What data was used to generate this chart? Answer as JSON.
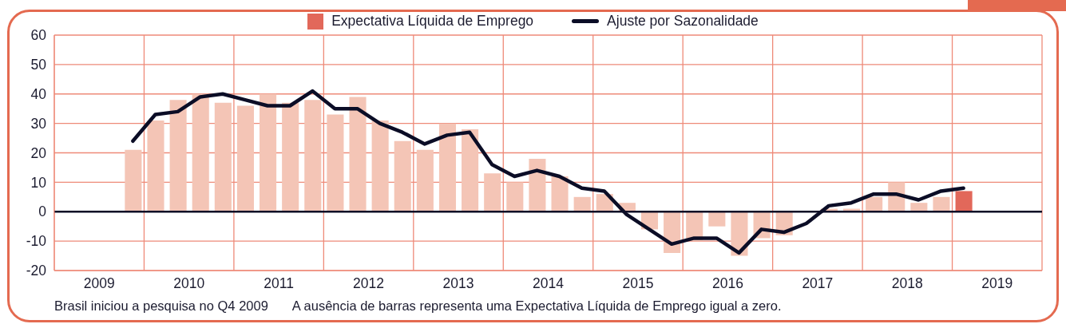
{
  "chart_data": {
    "type": "bar",
    "x": [
      2009.875,
      2010.125,
      2010.375,
      2010.625,
      2010.875,
      2011.125,
      2011.375,
      2011.625,
      2011.875,
      2012.125,
      2012.375,
      2012.625,
      2012.875,
      2013.125,
      2013.375,
      2013.625,
      2013.875,
      2014.125,
      2014.375,
      2014.625,
      2014.875,
      2015.125,
      2015.375,
      2015.625,
      2015.875,
      2016.125,
      2016.375,
      2016.625,
      2016.875,
      2017.125,
      2017.375,
      2017.625,
      2017.875,
      2018.125,
      2018.375,
      2018.625,
      2018.875,
      2019.125
    ],
    "series": [
      {
        "name": "Expectativa Líquida de Emprego",
        "color": "#e2685a",
        "colors": [
          "#f4c5b6",
          "#f4c5b6",
          "#f4c5b6",
          "#f4c5b6",
          "#f4c5b6",
          "#f4c5b6",
          "#f4c5b6",
          "#f4c5b6",
          "#f4c5b6",
          "#f4c5b6",
          "#f4c5b6",
          "#f4c5b6",
          "#f4c5b6",
          "#f4c5b6",
          "#f4c5b6",
          "#f4c5b6",
          "#f4c5b6",
          "#f4c5b6",
          "#f4c5b6",
          "#f4c5b6",
          "#f4c5b6",
          "#f4c5b6",
          "#f4c5b6",
          "#f4c5b6",
          "#f4c5b6",
          "#f4c5b6",
          "#f4c5b6",
          "#f4c5b6",
          "#f4c5b6",
          "#f4c5b6",
          "#f4c5b6",
          "#f4c5b6",
          "#f4c5b6",
          "#f4c5b6",
          "#f4c5b6",
          "#f4c5b6",
          "#f4c5b6",
          "#e2685a"
        ],
        "values": [
          21,
          31,
          38,
          40,
          37,
          36,
          40,
          37,
          38,
          33,
          39,
          31,
          24,
          21,
          30,
          28,
          13,
          10,
          18,
          12,
          5,
          6,
          3,
          -6,
          -14,
          -10,
          -5,
          -15,
          -9,
          -8,
          0,
          1,
          1,
          5,
          10,
          3,
          5,
          7
        ]
      },
      {
        "name": "Ajuste por Sazonalidade",
        "type": "line",
        "color": "#0b0d26",
        "values": [
          24,
          33,
          34,
          39,
          40,
          38,
          36,
          36,
          41,
          35,
          35,
          30,
          27,
          23,
          26,
          27,
          16,
          12,
          14,
          12,
          8,
          7,
          -1,
          -6,
          -11,
          -9,
          -9,
          -14,
          -6,
          -7,
          -4,
          2,
          3,
          6,
          6,
          4,
          7,
          8
        ]
      }
    ],
    "xlim": [
      2009,
      2020
    ],
    "xticks": [
      {
        "value": 2009,
        "label": null
      },
      {
        "value": 2009.5,
        "label": "2009"
      },
      {
        "value": 2010,
        "label": null
      },
      {
        "value": 2010.5,
        "label": "2010"
      },
      {
        "value": 2011,
        "label": null
      },
      {
        "value": 2011.5,
        "label": "2011"
      },
      {
        "value": 2012,
        "label": null
      },
      {
        "value": 2012.5,
        "label": "2012"
      },
      {
        "value": 2013,
        "label": null
      },
      {
        "value": 2013.5,
        "label": "2013"
      },
      {
        "value": 2014,
        "label": null
      },
      {
        "value": 2014.5,
        "label": "2014"
      },
      {
        "value": 2015,
        "label": null
      },
      {
        "value": 2015.5,
        "label": "2015"
      },
      {
        "value": 2016,
        "label": null
      },
      {
        "value": 2016.5,
        "label": "2016"
      },
      {
        "value": 2017,
        "label": null
      },
      {
        "value": 2017.5,
        "label": "2017"
      },
      {
        "value": 2018,
        "label": null
      },
      {
        "value": 2018.5,
        "label": "2018"
      },
      {
        "value": 2019,
        "label": null
      },
      {
        "value": 2019.5,
        "label": "2019"
      },
      {
        "value": 2020,
        "label": null
      }
    ],
    "ylim": [
      -20,
      60
    ],
    "yticks": [
      -20,
      -10,
      0,
      10,
      20,
      30,
      40,
      50,
      60
    ],
    "grid": true,
    "legend": "top",
    "marker": "none",
    "line_style": "solid",
    "ref_lines": [
      {
        "axis": "y",
        "value": 0,
        "color": "#0b0d26"
      }
    ],
    "annotations": [
      "Brasil iniciou a pesquisa no Q4 2009",
      "A ausência de barras representa uma Expectativa Líquida de Emprego igual a zero."
    ]
  }
}
